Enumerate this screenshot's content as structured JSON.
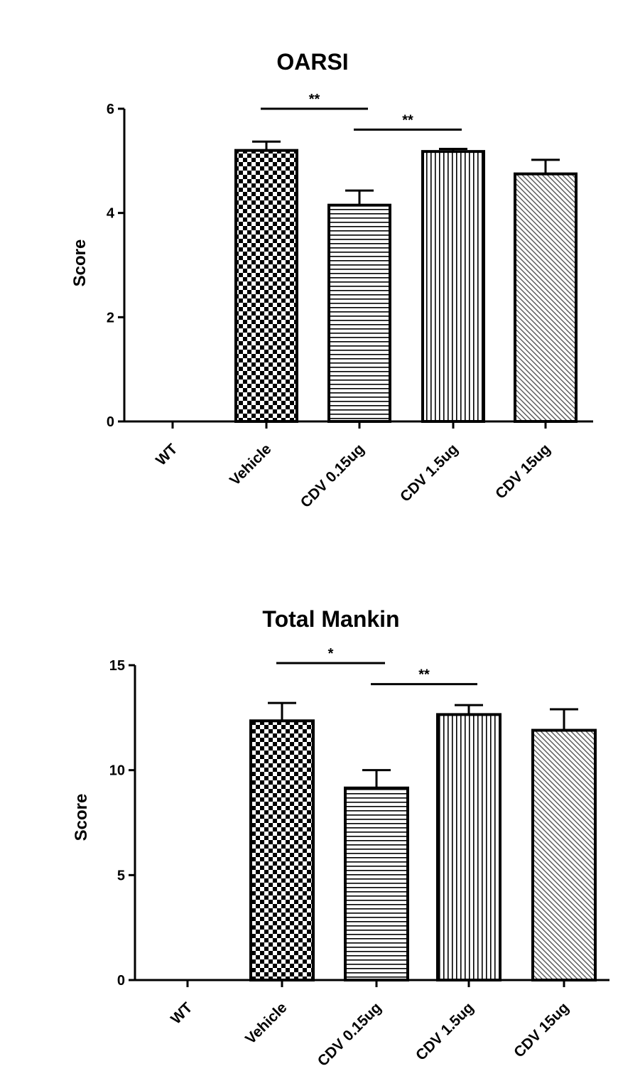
{
  "chart_data": [
    {
      "type": "bar",
      "title": "OARSI",
      "xlabel": "",
      "ylabel": "Score",
      "ylim": [
        0,
        6
      ],
      "yticks": [
        "0",
        "2",
        "4",
        "6"
      ],
      "categories": [
        "WT",
        "Vehicle",
        "CDV 0.15ug",
        "CDV 1.5ug",
        "CDV 15ug"
      ],
      "values": [
        0,
        5.2,
        4.15,
        5.18,
        4.75
      ],
      "errors": [
        0,
        0.17,
        0.28,
        0.05,
        0.27
      ],
      "patterns": [
        "none",
        "checker",
        "horizontal",
        "vertical",
        "diagonal"
      ],
      "significance": [
        {
          "from": 1,
          "to": 2,
          "y": 6.0,
          "label": "**"
        },
        {
          "from": 2,
          "to": 3,
          "y": 5.6,
          "label": "**"
        }
      ],
      "grid": false
    },
    {
      "type": "bar",
      "title": "Total Mankin",
      "xlabel": "",
      "ylabel": "Score",
      "ylim": [
        0,
        15
      ],
      "yticks": [
        "0",
        "5",
        "10",
        "15"
      ],
      "categories": [
        "WT",
        "Vehicle",
        "CDV 0.15ug",
        "CDV 1.5ug",
        "CDV 15ug"
      ],
      "values": [
        0,
        12.35,
        9.15,
        12.65,
        11.9
      ],
      "errors": [
        0,
        0.85,
        0.85,
        0.45,
        1.0
      ],
      "patterns": [
        "none",
        "checker",
        "horizontal",
        "vertical",
        "diagonal"
      ],
      "significance": [
        {
          "from": 1,
          "to": 2,
          "y": 15.1,
          "label": "*"
        },
        {
          "from": 2,
          "to": 3,
          "y": 14.1,
          "label": "**"
        }
      ],
      "grid": false
    }
  ],
  "colors": {
    "ink": "#000000",
    "background": "#ffffff"
  }
}
